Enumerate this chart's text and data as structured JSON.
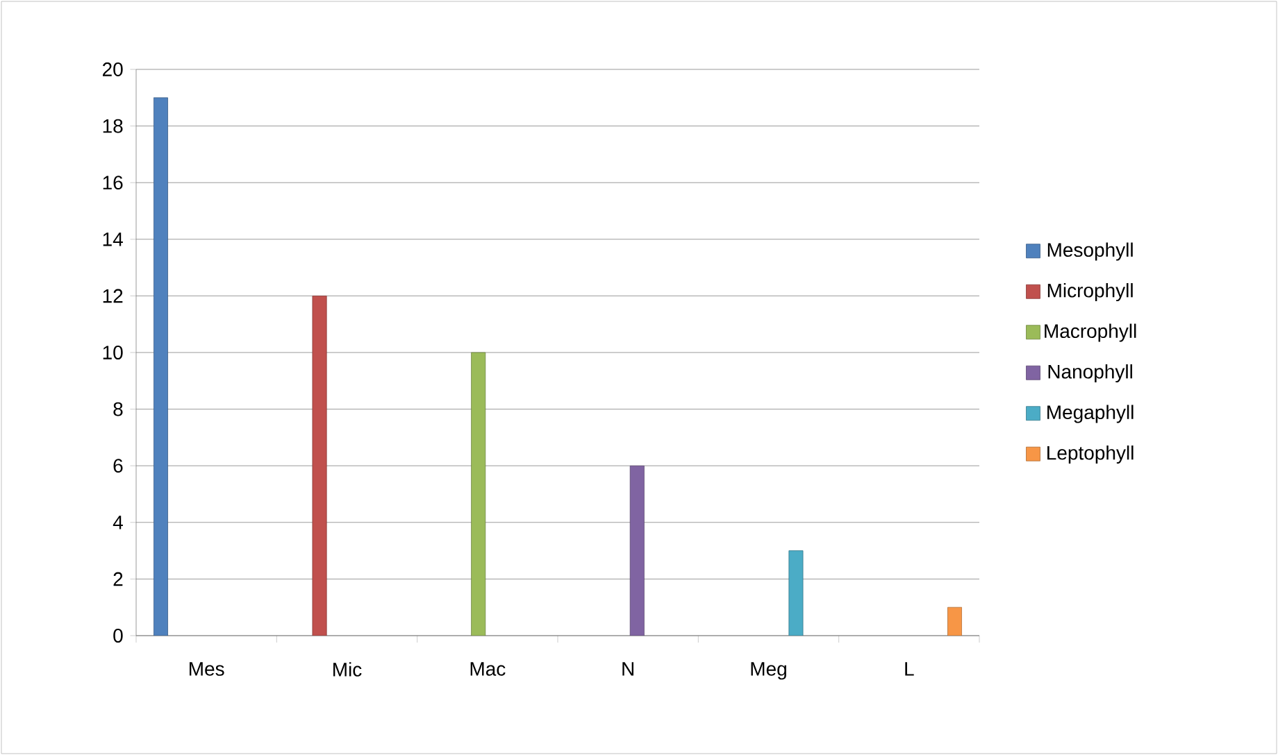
{
  "chart_data": {
    "type": "bar",
    "categories": [
      "Mes",
      "Mic",
      "Mac",
      "N",
      "Meg",
      "L"
    ],
    "series": [
      {
        "name": "Mesophyll",
        "color": "#4f81bd",
        "values": [
          19,
          null,
          null,
          null,
          null,
          null
        ]
      },
      {
        "name": "Microphyll",
        "color": "#c0504d",
        "values": [
          null,
          12,
          null,
          null,
          null,
          null
        ]
      },
      {
        "name": "Macrophyll",
        "color": "#9bbb59",
        "values": [
          null,
          null,
          10,
          null,
          null,
          null
        ]
      },
      {
        "name": "Nanophyll",
        "color": "#8064a2",
        "values": [
          null,
          null,
          null,
          6,
          null,
          null
        ]
      },
      {
        "name": "Megaphyll",
        "color": "#4bacc6",
        "values": [
          null,
          null,
          null,
          null,
          3,
          null
        ]
      },
      {
        "name": "Leptophyll",
        "color": "#f79646",
        "values": [
          null,
          null,
          null,
          null,
          null,
          1
        ]
      }
    ],
    "ylim": [
      0,
      20
    ],
    "yticks": [
      0,
      2,
      4,
      6,
      8,
      10,
      12,
      14,
      16,
      18,
      20
    ],
    "grid": "y",
    "legend": "right"
  }
}
